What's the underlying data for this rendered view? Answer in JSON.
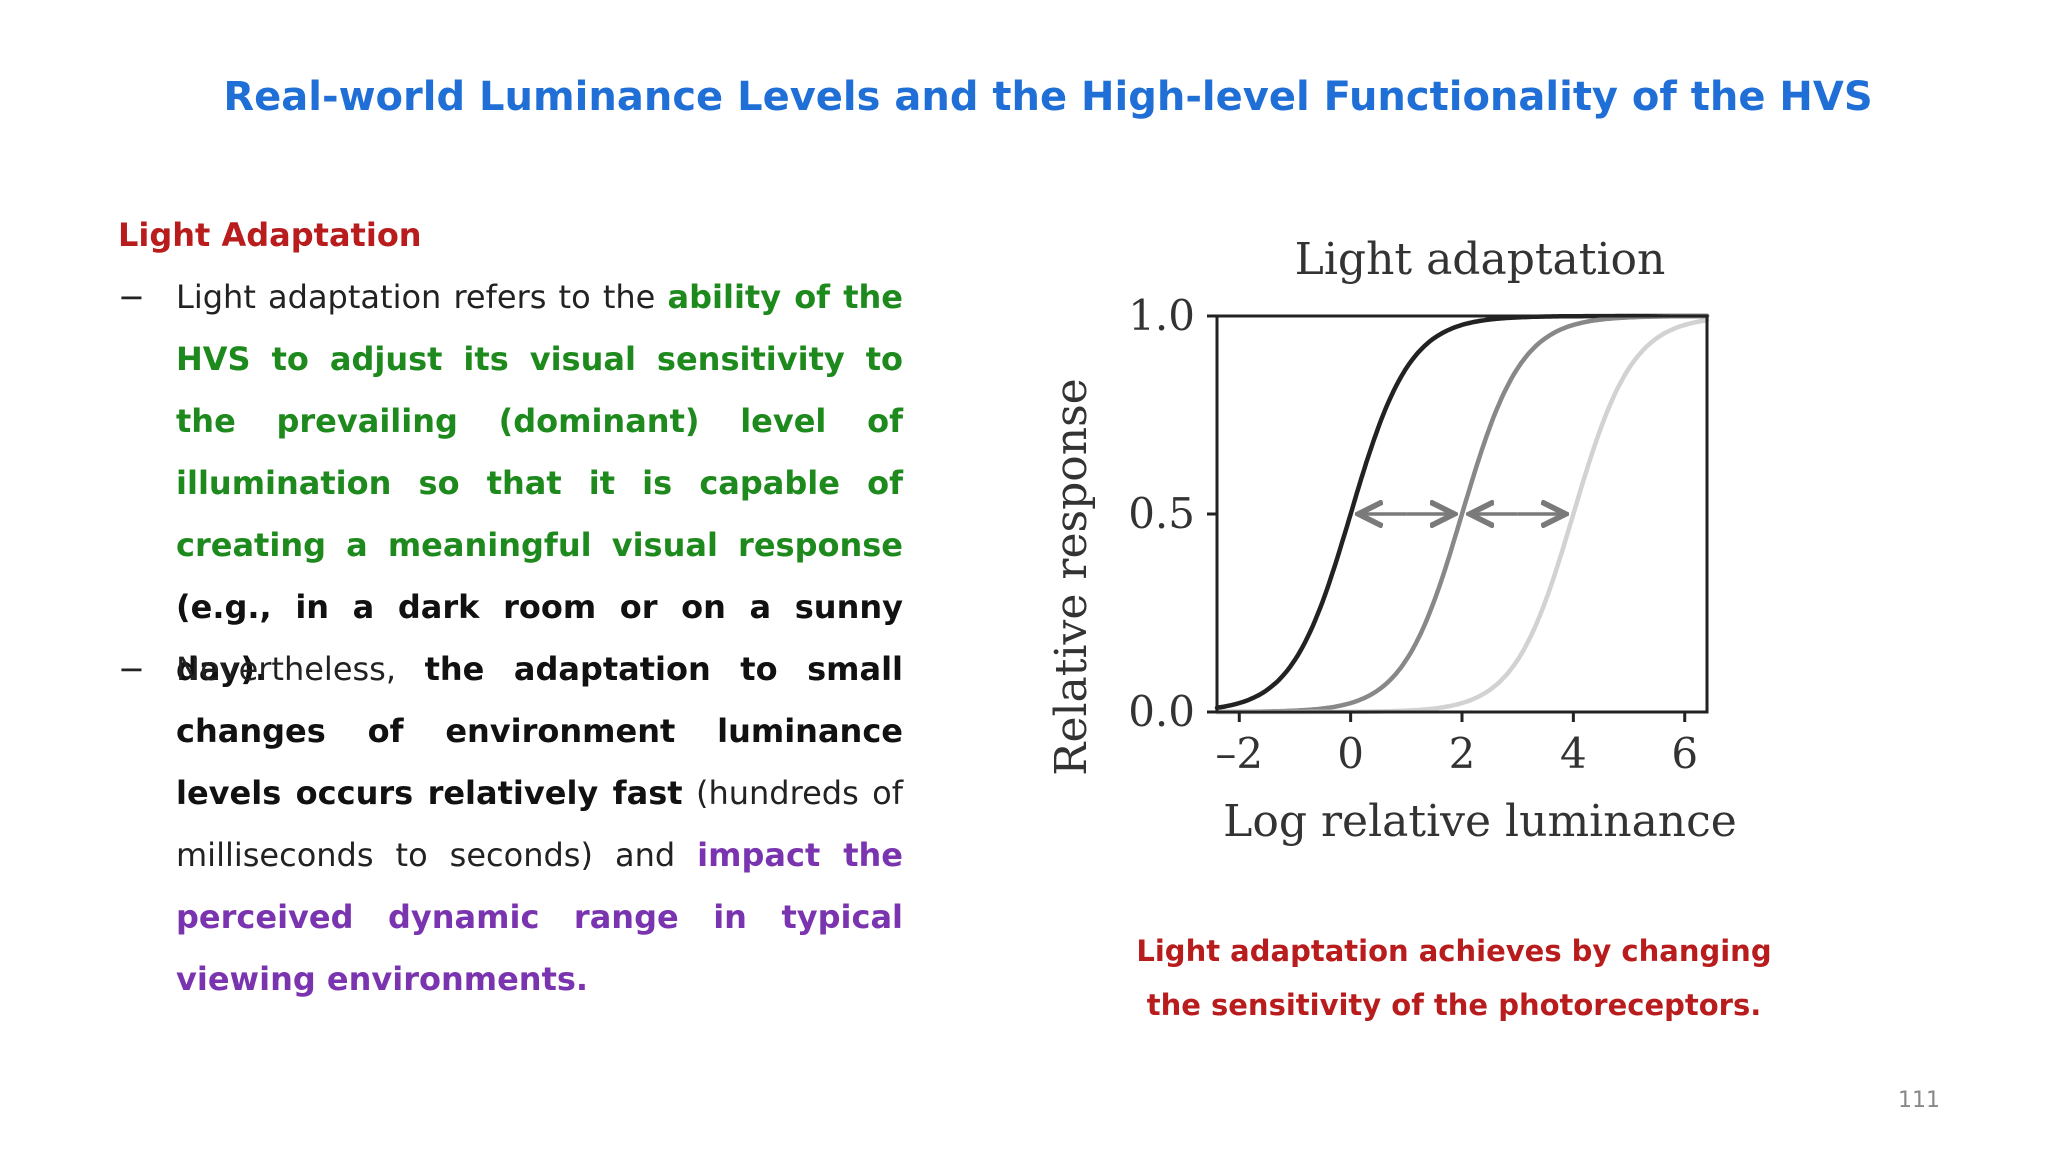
{
  "slide": {
    "title": "Real-world Luminance Levels and the High-level Functionality of the HVS",
    "section_heading": "Light Adaptation",
    "bullet_marker": "−",
    "bullet1": {
      "p1": "Light adaptation refers to the ",
      "p2": "ability of the HVS to adjust its visual sensitivity to the prevailing (dominant) level of illumination so that it is capable of creating a meaningful visual response",
      "p3": " (e.g., in a dark room or on a sunny day)."
    },
    "bullet2": {
      "p1": "Nevertheless, ",
      "p2": "the adaptation to small changes of environment luminance levels occurs relatively fast",
      "p3": " (hundreds of milliseconds to seconds) and ",
      "p4": "impact the perceived dynamic range in typical viewing environments."
    },
    "caption": {
      "line1": "Light adaptation achieves by changing",
      "line2": "the sensitivity of the photoreceptors."
    },
    "page_number": "111"
  },
  "chart_data": {
    "type": "line",
    "title": "Light adaptation",
    "xlabel": "Log relative luminance",
    "ylabel": "Relative response",
    "xlim": [
      -2.4,
      6.4
    ],
    "ylim": [
      0,
      1
    ],
    "x_ticks": [
      "–2",
      "0",
      "2",
      "4",
      "6"
    ],
    "x_tick_values": [
      -2,
      0,
      2,
      4,
      6
    ],
    "y_ticks": [
      "1.0",
      "0.5",
      "0.0"
    ],
    "y_tick_values": [
      1,
      0.5,
      0
    ],
    "grid": false,
    "legend": "none",
    "series": [
      {
        "midpoint": 0,
        "color": "#222222",
        "x": [
          -2,
          -1.5,
          -1,
          -0.5,
          0,
          0.5,
          1,
          1.5,
          2
        ],
        "y": [
          0.01,
          0.05,
          0.15,
          0.3,
          0.5,
          0.7,
          0.85,
          0.95,
          0.99
        ]
      },
      {
        "midpoint": 2,
        "color": "#888888",
        "x": [
          0,
          0.5,
          1,
          1.5,
          2,
          2.5,
          3,
          3.5,
          4
        ],
        "y": [
          0.01,
          0.05,
          0.15,
          0.3,
          0.5,
          0.7,
          0.85,
          0.95,
          0.99
        ]
      },
      {
        "midpoint": 4,
        "color": "#d2d2d2",
        "x": [
          2,
          2.5,
          3,
          3.5,
          4,
          4.5,
          5,
          5.5,
          6
        ],
        "y": [
          0.01,
          0.05,
          0.15,
          0.3,
          0.5,
          0.7,
          0.85,
          0.95,
          0.99
        ]
      }
    ],
    "arrows": [
      {
        "from": 1.0,
        "to": 0.2,
        "y": 0.5
      },
      {
        "from": 1.0,
        "to": 1.8,
        "y": 0.5
      },
      {
        "from": 3.0,
        "to": 2.2,
        "y": 0.5
      },
      {
        "from": 3.0,
        "to": 3.8,
        "y": 0.5
      }
    ]
  }
}
